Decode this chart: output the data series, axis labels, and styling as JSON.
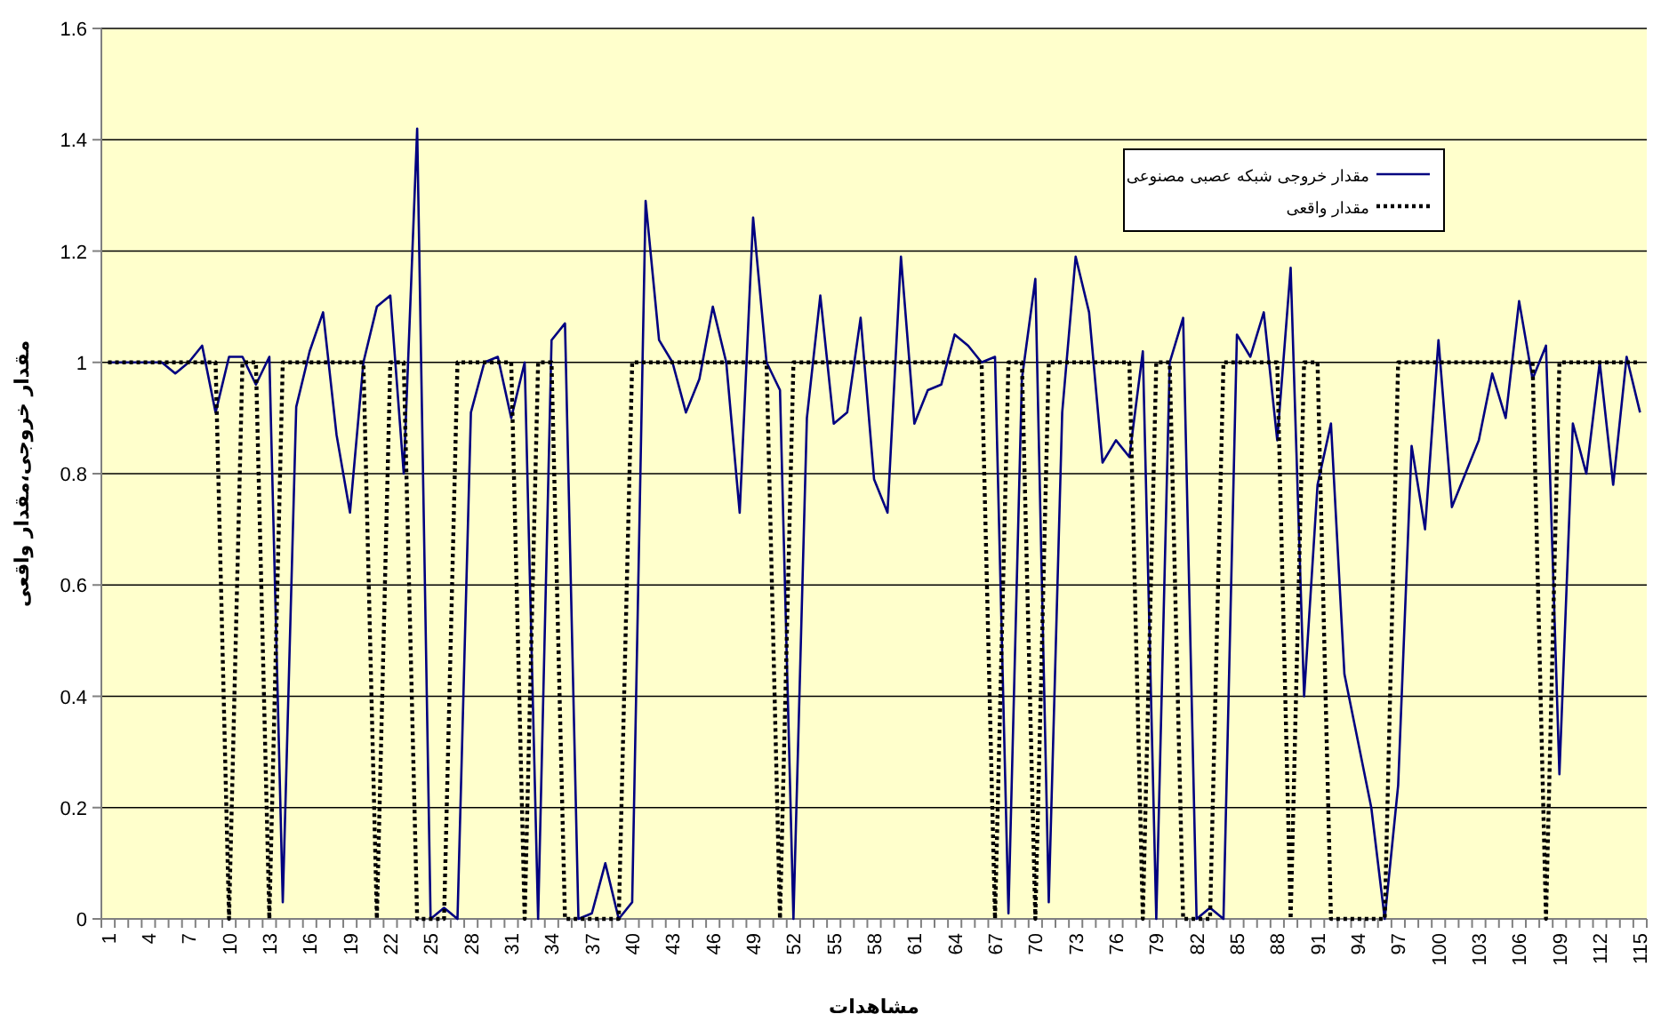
{
  "chart_data": {
    "type": "line",
    "xlabel": "مشاهدات",
    "ylabel": "مقدار خروجی،مقدار واقعی",
    "categories": [
      "1",
      null,
      null,
      "4",
      null,
      null,
      "7",
      null,
      null,
      "10",
      null,
      null,
      "13",
      null,
      null,
      "16",
      null,
      null,
      "19",
      null,
      null,
      "22",
      null,
      null,
      "25",
      null,
      null,
      "28",
      null,
      null,
      "31",
      null,
      null,
      "34",
      null,
      null,
      "37",
      null,
      null,
      "40",
      null,
      null,
      "43",
      null,
      null,
      "46",
      null,
      null,
      "49",
      null,
      null,
      "52",
      null,
      null,
      "55",
      null,
      null,
      "58",
      null,
      null,
      "61",
      null,
      null,
      "64",
      null,
      null,
      "67",
      null,
      null,
      "70",
      null,
      null,
      "73",
      null,
      null,
      "76",
      null,
      null,
      "79",
      null,
      null,
      "82",
      null,
      null,
      "85",
      null,
      null,
      "88",
      null,
      null,
      "91",
      null,
      null,
      "94",
      null,
      null,
      "97",
      null,
      null,
      "100",
      null,
      null,
      "103",
      null,
      null,
      "106",
      null,
      null,
      "109",
      null,
      null,
      "112",
      null,
      null,
      "115"
    ],
    "series": [
      {
        "name": "مقدار خروجی شبکه عصبی مصنوعی",
        "color": "#000080",
        "line_style": "solid",
        "values": [
          1,
          1,
          1,
          1,
          1,
          0.98,
          1.0,
          1.03,
          0.91,
          1.01,
          1.01,
          0.96,
          1.01,
          0.03,
          0.92,
          1.02,
          1.09,
          0.87,
          0.73,
          1.0,
          1.1,
          1.12,
          0.8,
          1.42,
          0,
          0.02,
          0,
          0.91,
          1.0,
          1.01,
          0.9,
          1.0,
          0,
          1.04,
          1.07,
          0,
          0.01,
          0.1,
          0,
          0.03,
          1.29,
          1.04,
          1.0,
          0.91,
          0.97,
          1.1,
          1.0,
          0.73,
          1.26,
          1.0,
          0.95,
          0,
          0.9,
          1.12,
          0.89,
          0.91,
          1.08,
          0.79,
          0.73,
          1.19,
          0.89,
          0.95,
          0.96,
          1.05,
          1.03,
          1.0,
          1.01,
          0.01,
          0.97,
          1.15,
          0.03,
          0.91,
          1.19,
          1.09,
          0.82,
          0.86,
          0.83,
          1.02,
          0,
          1.0,
          1.08,
          0,
          0.02,
          0,
          1.05,
          1.01,
          1.09,
          0.86,
          1.17,
          0.4,
          0.78,
          0.89,
          0.44,
          0.32,
          0.2,
          0,
          0.24,
          0.85,
          0.7,
          1.04,
          0.74,
          0.8,
          0.86,
          0.98,
          0.9,
          1.11,
          0.97,
          1.03,
          0.26,
          0.89,
          0.8,
          1.0,
          0.78,
          1.01,
          0.91
        ]
      },
      {
        "name": "مقدار واقعی",
        "color": "#000000",
        "line_style": "dotted",
        "values": [
          1,
          1,
          1,
          1,
          1,
          1,
          1,
          1,
          1,
          0,
          1,
          1,
          0,
          1,
          1,
          1,
          1,
          1,
          1,
          1,
          0,
          1,
          1,
          0,
          0,
          0,
          1,
          1,
          1,
          1,
          1,
          0,
          1,
          1,
          0,
          0,
          0,
          0,
          0,
          1,
          1,
          1,
          1,
          1,
          1,
          1,
          1,
          1,
          1,
          1,
          0,
          1,
          1,
          1,
          1,
          1,
          1,
          1,
          1,
          1,
          1,
          1,
          1,
          1,
          1,
          1,
          0,
          1,
          1,
          0,
          1,
          1,
          1,
          1,
          1,
          1,
          1,
          0,
          1,
          1,
          0,
          0,
          0,
          1,
          1,
          1,
          1,
          1,
          0,
          1,
          1,
          0,
          0,
          0,
          0,
          0,
          1,
          1,
          1,
          1,
          1,
          1,
          1,
          1,
          1,
          1,
          1,
          0,
          1,
          1,
          1,
          1,
          1,
          1,
          1
        ]
      }
    ],
    "ylim": [
      0,
      1.6
    ],
    "yticks": [
      0,
      0.2,
      0.4,
      0.6,
      0.8,
      1,
      1.2,
      1.4,
      1.6
    ],
    "grid": "y",
    "legend": "top right",
    "marker": "none"
  }
}
